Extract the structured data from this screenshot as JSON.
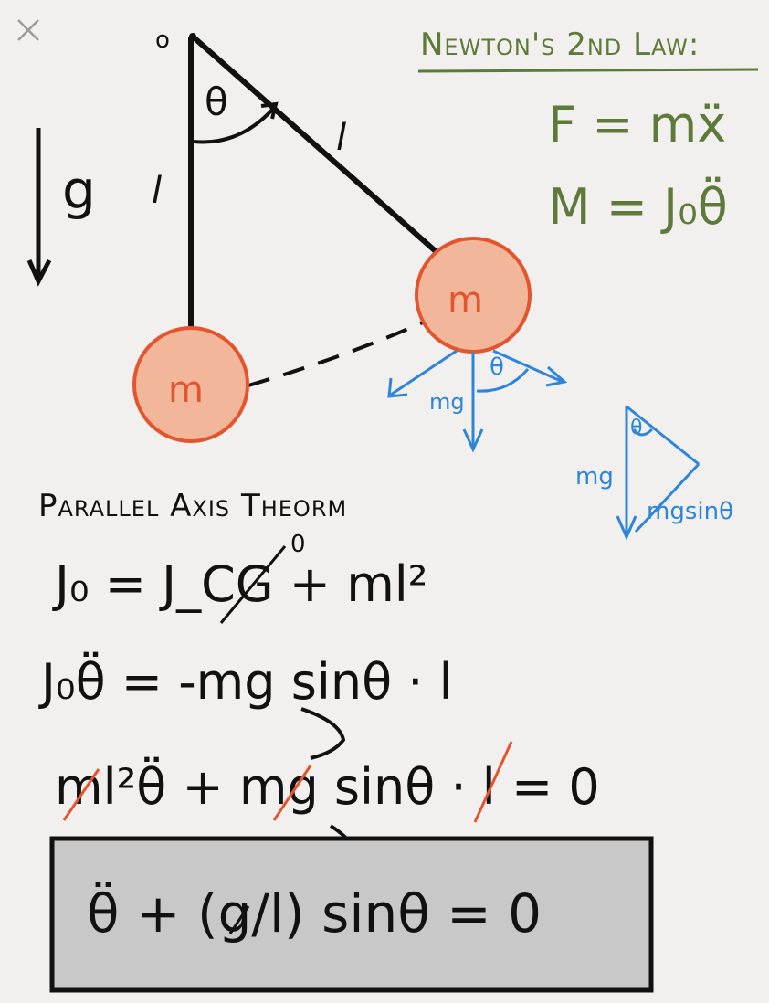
{
  "close": {
    "icon": "close-icon"
  },
  "newton": {
    "heading": "Newton's 2nd Law:",
    "eq1": "F = mẍ",
    "eq2": "M = J₀θ̈"
  },
  "diagram": {
    "pivot": "o",
    "angle": "θ",
    "length_left": "l",
    "length_rod": "l",
    "gravity": "g",
    "mass_left": "m",
    "mass_right": "m",
    "force_mg": "mg",
    "force_angle": "θ",
    "triangle_angle": "θ",
    "triangle_mg": "mg",
    "triangle_component": "mgsinθ"
  },
  "derivation": {
    "heading": "Parallel Axis Theorm",
    "line1": "J₀ = J_CG + ml²",
    "jcg_zero": "0",
    "line2": "J₀θ̈ = -mg sinθ · l",
    "line3": "ml²θ̈ + mg sinθ · l = 0",
    "result": "θ̈ + (g/l) sinθ = 0"
  },
  "colors": {
    "ink": "#111111",
    "green": "#5e7a3a",
    "red": "#e2552e",
    "red_fill": "#f2b79a",
    "blue": "#2f86d8",
    "box": "#c8c8c8"
  }
}
